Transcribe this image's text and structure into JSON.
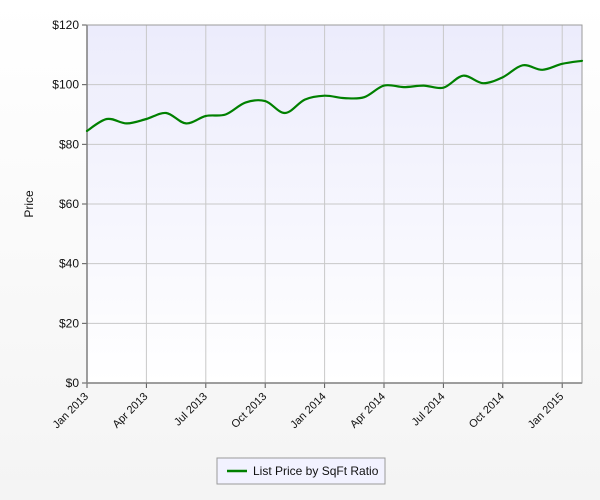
{
  "chart_data": {
    "type": "line",
    "title": "",
    "xlabel": "",
    "ylabel": "Price",
    "ylim": [
      0,
      120
    ],
    "y_ticks": [
      "$0",
      "$20",
      "$40",
      "$60",
      "$80",
      "$100",
      "$120"
    ],
    "x_ticks": [
      "Jan 2013",
      "Apr 2013",
      "Jul 2013",
      "Oct 2013",
      "Jan 2014",
      "Apr 2014",
      "Jul 2014",
      "Oct 2014",
      "Jan 2015"
    ],
    "x": [
      "2013-01",
      "2013-02",
      "2013-03",
      "2013-04",
      "2013-05",
      "2013-06",
      "2013-07",
      "2013-08",
      "2013-09",
      "2013-10",
      "2013-11",
      "2013-12",
      "2014-01",
      "2014-02",
      "2014-03",
      "2014-04",
      "2014-05",
      "2014-06",
      "2014-07",
      "2014-08",
      "2014-09",
      "2014-10",
      "2014-11",
      "2014-12",
      "2015-01",
      "2015-02"
    ],
    "series": [
      {
        "name": "List Price by SqFt Ratio",
        "color": "#008000",
        "values": [
          84.5,
          88.5,
          87,
          88.5,
          90.5,
          87,
          89.5,
          90,
          94,
          94.5,
          90.5,
          95,
          96.3,
          95.5,
          95.8,
          99.7,
          99.2,
          99.7,
          99,
          103,
          100.5,
          102.5,
          106.5,
          105,
          107,
          108
        ]
      }
    ],
    "grid": true,
    "legend_position": "bottom-center",
    "plot_background": "#ececfc"
  }
}
